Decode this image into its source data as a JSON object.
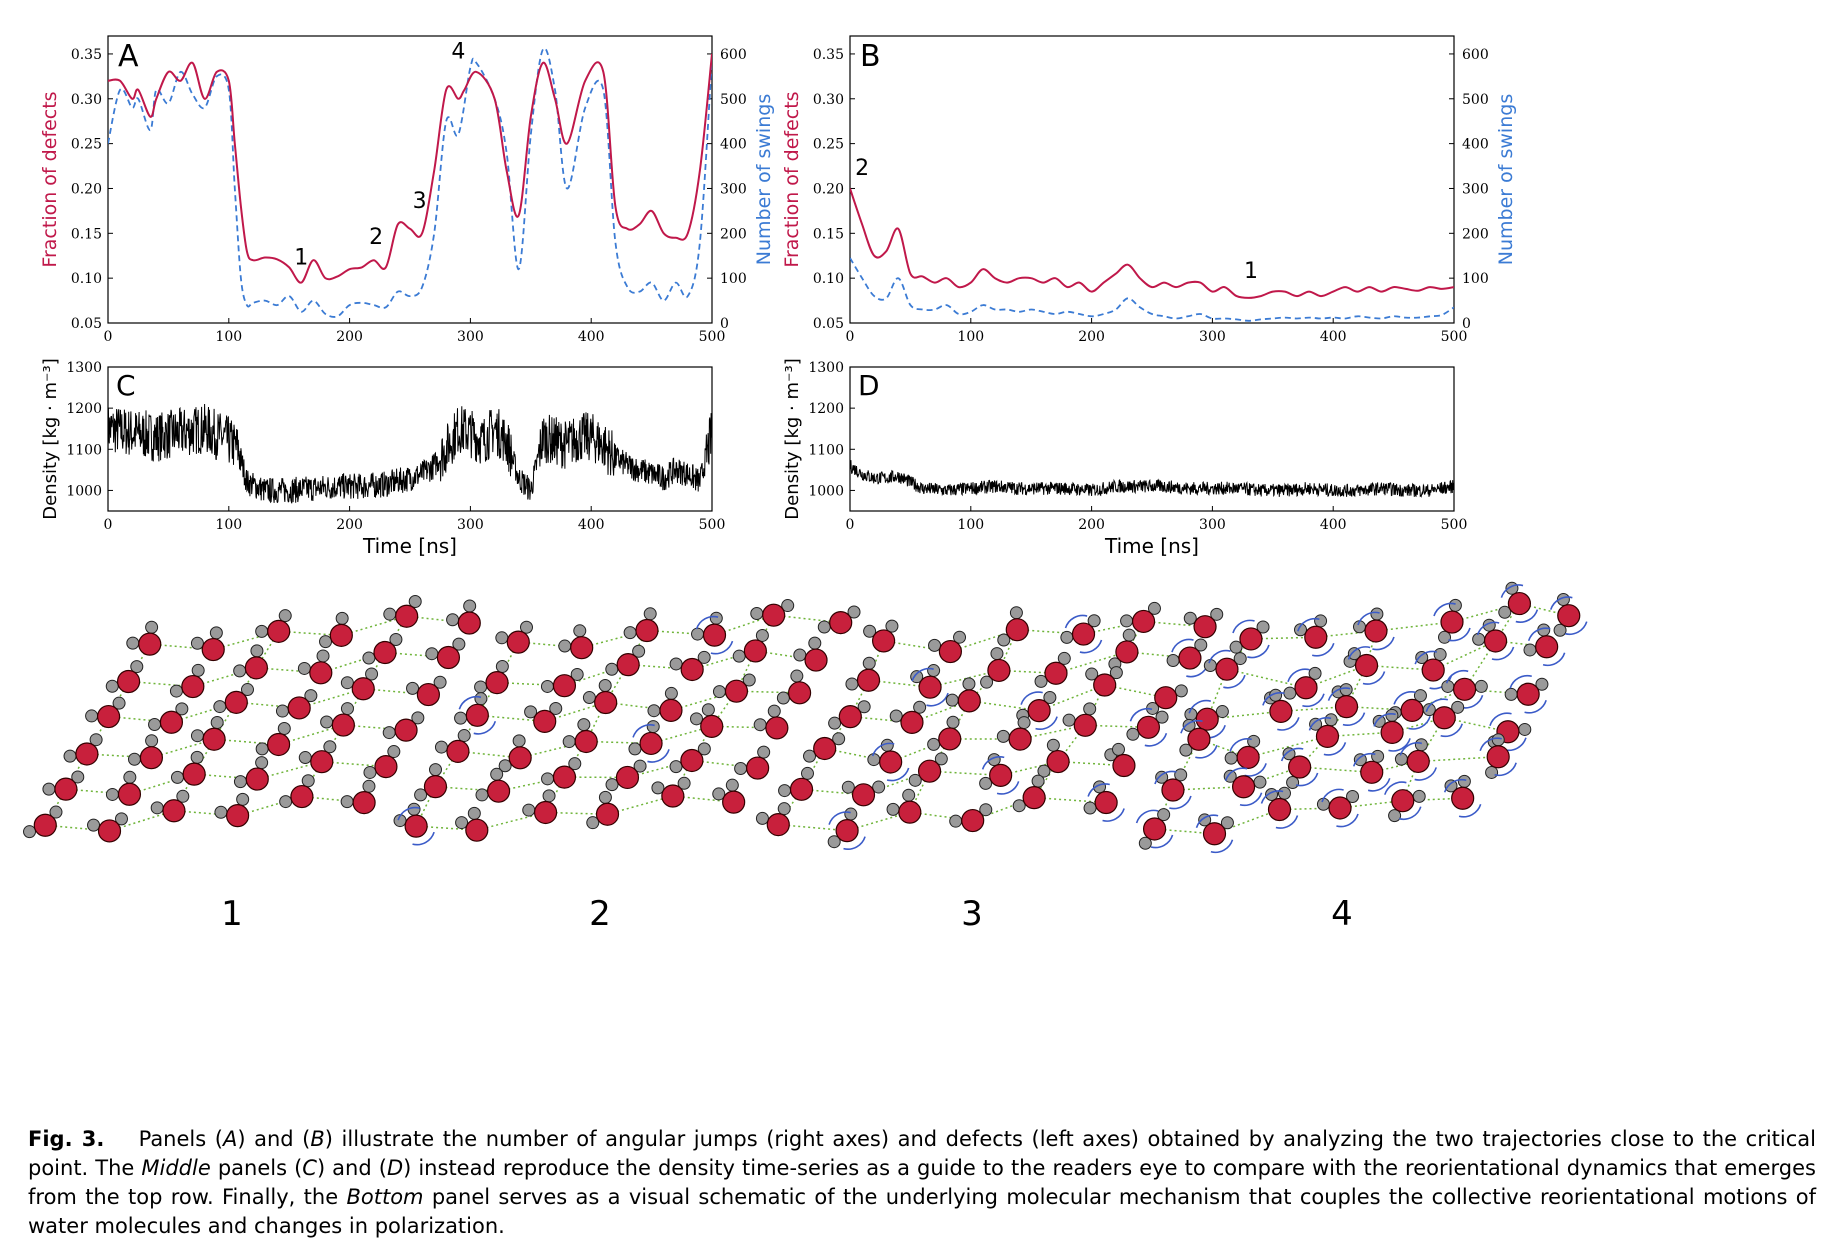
{
  "colors": {
    "defects": "#c0184a",
    "swings": "#3b7bd4",
    "density": "#000000",
    "oxygen": "#c8203c",
    "hydrogen": "#9a9a9a",
    "hbond": "#6fb43a",
    "arrow": "#3b5bc8"
  },
  "panels": {
    "A": {
      "letter": "A",
      "left_label": "Fraction of defects",
      "right_label": "Number of swings",
      "left_ticks": [
        "0.05",
        "0.10",
        "0.15",
        "0.20",
        "0.25",
        "0.30",
        "0.35"
      ],
      "right_ticks": [
        "0",
        "100",
        "200",
        "300",
        "400",
        "500",
        "600"
      ],
      "x_ticks": [
        "0",
        "100",
        "200",
        "300",
        "400",
        "500"
      ],
      "annotations": [
        "1",
        "2",
        "3",
        "4"
      ]
    },
    "B": {
      "letter": "B",
      "left_label": "Fraction of defects",
      "right_label": "Number of swings",
      "left_ticks": [
        "0.05",
        "0.10",
        "0.15",
        "0.20",
        "0.25",
        "0.30",
        "0.35"
      ],
      "right_ticks": [
        "0",
        "100",
        "200",
        "300",
        "400",
        "500",
        "600"
      ],
      "x_ticks": [
        "0",
        "100",
        "200",
        "300",
        "400",
        "500"
      ],
      "annotations": [
        "2",
        "1"
      ]
    },
    "C": {
      "letter": "C",
      "y_label": "Density [kg · m⁻³]",
      "y_ticks": [
        "1000",
        "1100",
        "1200",
        "1300"
      ],
      "x_ticks": [
        "0",
        "100",
        "200",
        "300",
        "400",
        "500"
      ],
      "x_label": "Time [ns]"
    },
    "D": {
      "letter": "D",
      "y_label": "Density [kg · m⁻³]",
      "y_ticks": [
        "1000",
        "1100",
        "1200",
        "1300"
      ],
      "x_ticks": [
        "0",
        "100",
        "200",
        "300",
        "400",
        "500"
      ],
      "x_label": "Time [ns]"
    }
  },
  "chart_data": [
    {
      "panel": "A",
      "type": "line",
      "xlim": [
        0,
        500
      ],
      "ylim": [
        0.05,
        0.37
      ],
      "y2lim": [
        0,
        640
      ],
      "series": [
        {
          "axis": "left",
          "x": [
            0,
            10,
            20,
            25,
            35,
            40,
            50,
            60,
            70,
            80,
            90,
            100,
            105,
            110,
            115,
            120,
            130,
            140,
            150,
            160,
            170,
            180,
            190,
            200,
            210,
            220,
            230,
            240,
            250,
            260,
            270,
            280,
            290,
            295,
            305,
            320,
            330,
            340,
            350,
            360,
            370,
            380,
            395,
            410,
            420,
            430,
            440,
            450,
            460,
            470,
            480,
            490,
            500
          ],
          "y": [
            0.32,
            0.32,
            0.3,
            0.31,
            0.28,
            0.3,
            0.33,
            0.32,
            0.34,
            0.3,
            0.33,
            0.32,
            0.25,
            0.18,
            0.13,
            0.12,
            0.123,
            0.121,
            0.112,
            0.095,
            0.12,
            0.1,
            0.102,
            0.11,
            0.112,
            0.12,
            0.112,
            0.16,
            0.155,
            0.15,
            0.22,
            0.31,
            0.3,
            0.31,
            0.33,
            0.3,
            0.22,
            0.17,
            0.28,
            0.34,
            0.3,
            0.25,
            0.32,
            0.33,
            0.18,
            0.155,
            0.16,
            0.175,
            0.15,
            0.145,
            0.15,
            0.22,
            0.35
          ]
        },
        {
          "axis": "right",
          "x": [
            0,
            10,
            20,
            25,
            35,
            40,
            50,
            60,
            70,
            80,
            90,
            100,
            105,
            110,
            115,
            120,
            130,
            140,
            150,
            160,
            170,
            180,
            190,
            200,
            210,
            220,
            230,
            240,
            250,
            260,
            270,
            280,
            290,
            300,
            305,
            320,
            330,
            340,
            350,
            360,
            370,
            380,
            395,
            410,
            420,
            430,
            440,
            450,
            460,
            470,
            480,
            490,
            500
          ],
          "y": [
            400,
            520,
            480,
            500,
            430,
            520,
            490,
            560,
            510,
            480,
            550,
            520,
            300,
            100,
            40,
            45,
            50,
            40,
            60,
            25,
            50,
            20,
            15,
            40,
            45,
            40,
            35,
            70,
            60,
            80,
            200,
            450,
            420,
            570,
            580,
            500,
            380,
            120,
            420,
            610,
            520,
            300,
            480,
            520,
            180,
            80,
            70,
            90,
            50,
            90,
            60,
            180,
            590
          ]
        }
      ]
    },
    {
      "panel": "B",
      "type": "line",
      "xlim": [
        0,
        500
      ],
      "ylim": [
        0.05,
        0.37
      ],
      "y2lim": [
        0,
        640
      ],
      "series": [
        {
          "axis": "left",
          "x": [
            0,
            10,
            20,
            30,
            40,
            50,
            60,
            70,
            80,
            90,
            100,
            110,
            120,
            130,
            140,
            150,
            160,
            170,
            180,
            190,
            200,
            210,
            220,
            230,
            240,
            250,
            260,
            270,
            280,
            290,
            300,
            310,
            320,
            330,
            340,
            350,
            360,
            370,
            380,
            390,
            400,
            410,
            420,
            430,
            440,
            450,
            460,
            470,
            480,
            490,
            500
          ],
          "y": [
            0.2,
            0.16,
            0.125,
            0.13,
            0.155,
            0.105,
            0.102,
            0.095,
            0.1,
            0.09,
            0.095,
            0.11,
            0.1,
            0.095,
            0.1,
            0.1,
            0.095,
            0.1,
            0.09,
            0.095,
            0.085,
            0.095,
            0.105,
            0.115,
            0.1,
            0.09,
            0.095,
            0.09,
            0.095,
            0.095,
            0.085,
            0.09,
            0.08,
            0.078,
            0.08,
            0.085,
            0.085,
            0.08,
            0.085,
            0.08,
            0.085,
            0.09,
            0.085,
            0.09,
            0.085,
            0.09,
            0.088,
            0.086,
            0.09,
            0.088,
            0.09
          ]
        },
        {
          "axis": "right",
          "x": [
            0,
            10,
            20,
            30,
            40,
            50,
            60,
            70,
            80,
            90,
            100,
            110,
            120,
            130,
            140,
            150,
            160,
            170,
            180,
            190,
            200,
            210,
            220,
            230,
            240,
            250,
            260,
            270,
            280,
            290,
            300,
            310,
            320,
            330,
            340,
            350,
            360,
            370,
            380,
            390,
            400,
            410,
            420,
            430,
            440,
            450,
            460,
            470,
            480,
            490,
            500
          ],
          "y": [
            145,
            100,
            60,
            55,
            100,
            40,
            30,
            30,
            40,
            20,
            25,
            40,
            30,
            30,
            25,
            30,
            25,
            20,
            25,
            20,
            15,
            20,
            30,
            55,
            35,
            20,
            15,
            10,
            15,
            20,
            10,
            10,
            8,
            5,
            8,
            10,
            12,
            10,
            12,
            10,
            12,
            10,
            15,
            12,
            10,
            15,
            12,
            12,
            15,
            18,
            35
          ]
        }
      ]
    },
    {
      "panel": "C",
      "type": "line",
      "xlim": [
        0,
        500
      ],
      "ylim": [
        950,
        1300
      ],
      "series": [
        {
          "name": "",
          "x": [
            0,
            20,
            40,
            60,
            80,
            100,
            108,
            115,
            130,
            150,
            170,
            190,
            210,
            230,
            250,
            260,
            270,
            280,
            290,
            300,
            310,
            320,
            330,
            340,
            350,
            360,
            370,
            380,
            390,
            400,
            410,
            420,
            430,
            440,
            450,
            460,
            470,
            480,
            490,
            500
          ],
          "y": [
            1150,
            1140,
            1130,
            1140,
            1150,
            1120,
            1100,
            1020,
            1000,
            1000,
            1005,
            1010,
            1010,
            1015,
            1030,
            1040,
            1060,
            1100,
            1150,
            1140,
            1120,
            1150,
            1120,
            1030,
            1000,
            1130,
            1120,
            1110,
            1130,
            1130,
            1110,
            1080,
            1060,
            1050,
            1040,
            1030,
            1050,
            1040,
            1020,
            1140
          ]
        }
      ]
    },
    {
      "panel": "D",
      "type": "line",
      "xlim": [
        0,
        500
      ],
      "ylim": [
        950,
        1300
      ],
      "series": [
        {
          "name": "",
          "x": [
            0,
            10,
            20,
            30,
            40,
            50,
            60,
            80,
            100,
            120,
            140,
            160,
            180,
            200,
            220,
            240,
            260,
            280,
            300,
            320,
            340,
            360,
            380,
            400,
            420,
            440,
            460,
            480,
            500
          ],
          "y": [
            1060,
            1040,
            1030,
            1030,
            1035,
            1020,
            1005,
            1000,
            1005,
            1010,
            1005,
            1005,
            1005,
            1000,
            1010,
            1010,
            1010,
            1005,
            1005,
            1005,
            1000,
            1000,
            1005,
            1000,
            1000,
            1005,
            1000,
            1000,
            1010
          ]
        }
      ]
    }
  ],
  "schematic_labels": [
    "1",
    "2",
    "3",
    "4"
  ],
  "caption": {
    "label": "Fig. 3.",
    "t1": "Panels (",
    "a": "A",
    "t2": ") and (",
    "b": "B",
    "t3": ") illustrate the number of angular jumps (right axes) and defects (left axes) obtained by analyzing the two trajectories close to the critical point. The ",
    "middle": "Middle",
    "t4": " panels (",
    "c": "C",
    "t5": ") and (",
    "d": "D",
    "t6": ") instead reproduce the density time-series as a guide to the readers eye to compare with the reorientational dynamics that emerges from the top row. Finally, the ",
    "bottom": "Bottom",
    "t7": " panel serves as a visual schematic of the underlying molecular mechanism that couples the collective reorientational motions of water molecules and changes in polarization."
  }
}
